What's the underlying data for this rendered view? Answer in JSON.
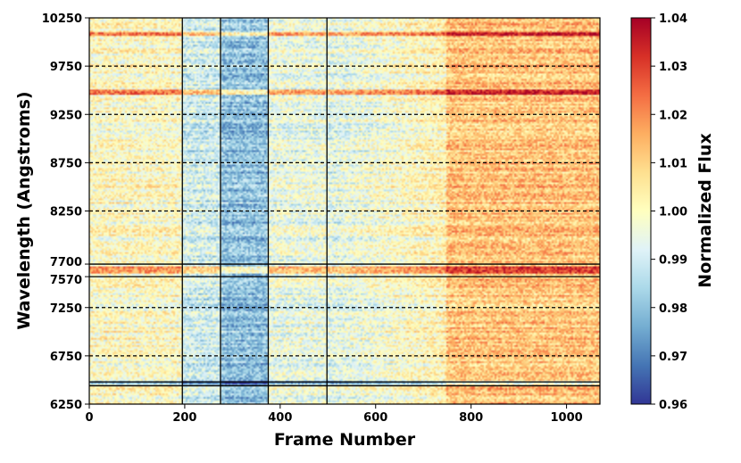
{
  "chart_data": {
    "type": "heatmap",
    "xlabel": "Frame Number",
    "ylabel": "Wavelength (Angstroms)",
    "colorbar_label": "Normalized Flux",
    "colormap": "RdYlBu_r",
    "x_range": [
      0,
      1070
    ],
    "x_ticks": [
      0,
      200,
      400,
      600,
      800,
      1000
    ],
    "y_range": [
      6250,
      10250
    ],
    "y_ticks": [
      6250,
      6750,
      7250,
      7570,
      7700,
      8250,
      8750,
      9250,
      9750,
      10250
    ],
    "color_range": [
      0.96,
      1.04
    ],
    "colorbar_ticks": [
      "0.96",
      "0.97",
      "0.98",
      "0.99",
      "1.00",
      "1.01",
      "1.02",
      "1.03",
      "1.04"
    ],
    "vertical_lines_frame": [
      195,
      275,
      375,
      498
    ],
    "horizontal_solid_lines_wavelength": [
      7700,
      7570,
      6480,
      6440
    ],
    "horizontal_dashed_lines_wavelength": [
      6750,
      7250,
      8250,
      8750,
      9250,
      9750
    ],
    "frame_segments": [
      {
        "frames": [
          0,
          195
        ],
        "typical_flux": 1.0
      },
      {
        "frames": [
          195,
          275
        ],
        "typical_flux": 0.99
      },
      {
        "frames": [
          275,
          375
        ],
        "typical_flux": 0.98
      },
      {
        "frames": [
          375,
          498
        ],
        "typical_flux": 0.995
      },
      {
        "frames": [
          498,
          750
        ],
        "typical_flux": 0.995
      },
      {
        "frames": [
          750,
          1070
        ],
        "typical_flux": 1.012
      }
    ],
    "grid": false,
    "legend": "colorbar-right"
  }
}
